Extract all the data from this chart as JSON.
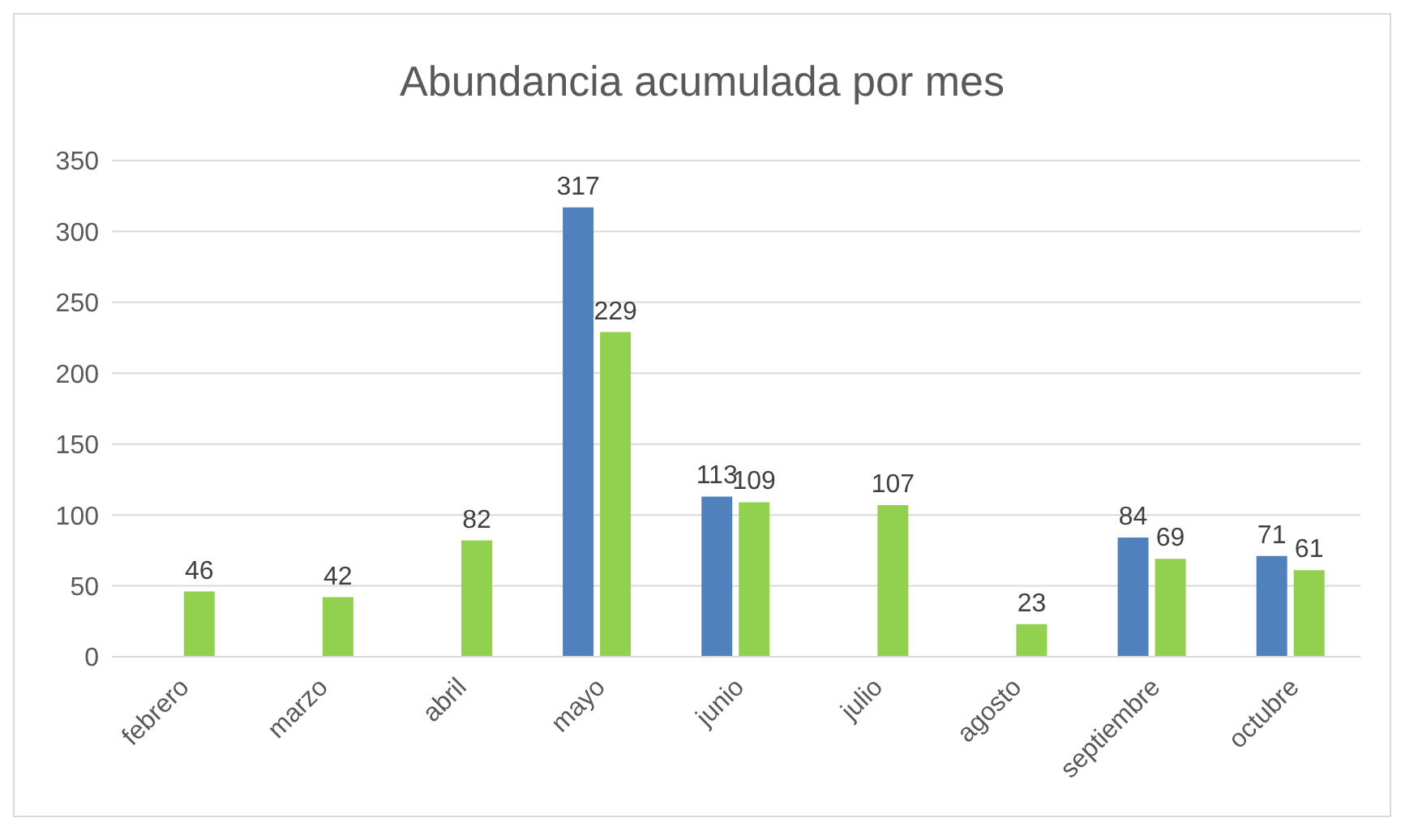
{
  "chart_data": {
    "type": "bar",
    "title": "Abundancia acumulada por mes",
    "categories": [
      "febrero",
      "marzo",
      "abril",
      "mayo",
      "junio",
      "julio",
      "agosto",
      "septiembre",
      "octubre"
    ],
    "series": [
      {
        "color": "#4f81bd",
        "values": [
          null,
          null,
          null,
          317,
          113,
          null,
          null,
          84,
          71
        ]
      },
      {
        "color": "#92d050",
        "values": [
          46,
          42,
          82,
          229,
          109,
          107,
          23,
          69,
          61
        ]
      }
    ],
    "ylim": [
      0,
      350
    ],
    "yticks": [
      0,
      50,
      100,
      150,
      200,
      250,
      300,
      350
    ],
    "grid": "y",
    "data_labels": true,
    "legend": false
  }
}
